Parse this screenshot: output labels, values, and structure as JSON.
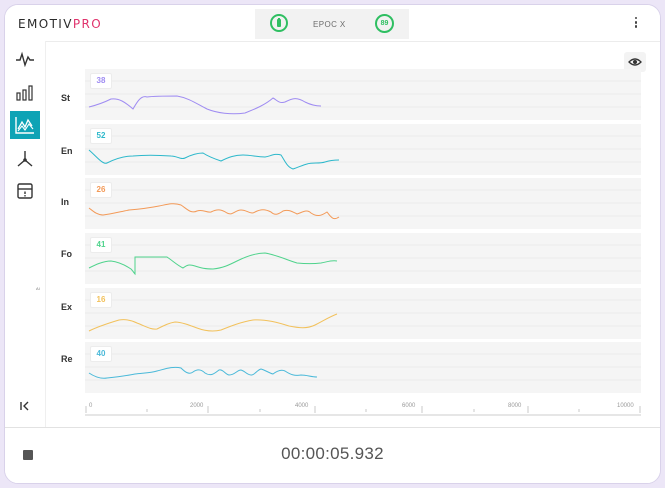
{
  "app": {
    "logo_main": "EMOTIV",
    "logo_accent": "PRO"
  },
  "device": {
    "name": "EPOC X",
    "quality": "89",
    "battery_icon": "battery-icon"
  },
  "sidebar": {
    "items": [
      {
        "name": "raw-eeg-icon",
        "active": false
      },
      {
        "name": "band-power-icon",
        "active": false
      },
      {
        "name": "performance-metrics-icon",
        "active": true
      },
      {
        "name": "motion-icon",
        "active": false
      },
      {
        "name": "markers-icon",
        "active": false
      }
    ],
    "ai_label": "AI"
  },
  "metrics": [
    {
      "label": "St",
      "value": "38",
      "color": "#9f8cf2"
    },
    {
      "label": "En",
      "value": "52",
      "color": "#2cb8cb"
    },
    {
      "label": "In",
      "value": "26",
      "color": "#f39a58"
    },
    {
      "label": "Fo",
      "value": "41",
      "color": "#4fd38c"
    },
    {
      "label": "Ex",
      "value": "16",
      "color": "#f2c15b"
    },
    {
      "label": "Re",
      "value": "40",
      "color": "#4ab9d9"
    }
  ],
  "xaxis": {
    "ticks": [
      "0",
      "2000",
      "4000",
      "6000",
      "8000",
      "10000"
    ]
  },
  "recording": {
    "elapsed": "00:00:05.932"
  },
  "colors": {
    "accent": "#0ea3b5",
    "good": "#2fbf62",
    "brand_pro": "#e0326c"
  }
}
